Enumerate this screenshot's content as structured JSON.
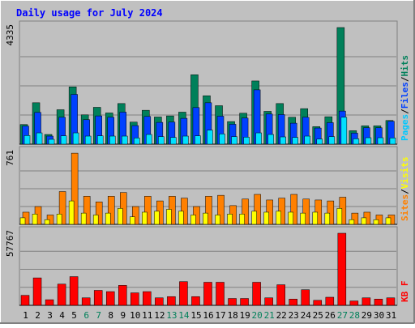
{
  "chart_data": [
    {
      "type": "bar",
      "title": "Daily usage for July 2024",
      "ymax_label": "4335",
      "ylim": [
        0,
        4335
      ],
      "categories": [
        "1",
        "2",
        "3",
        "4",
        "5",
        "6",
        "7",
        "8",
        "9",
        "10",
        "11",
        "12",
        "13",
        "14",
        "15",
        "16",
        "17",
        "18",
        "19",
        "20",
        "21",
        "22",
        "23",
        "24",
        "25",
        "26",
        "27",
        "28",
        "29",
        "30",
        "31"
      ],
      "weekend_days": [
        "6",
        "7",
        "13",
        "14",
        "20",
        "21",
        "27",
        "28"
      ],
      "legend": [
        "Pages",
        "Files",
        "Hits"
      ],
      "series": [
        {
          "name": "Hits",
          "values": [
            730,
            1540,
            360,
            1280,
            2130,
            1090,
            1370,
            1160,
            1510,
            820,
            1260,
            1010,
            1050,
            1190,
            2580,
            1800,
            1430,
            840,
            1150,
            2350,
            1220,
            1510,
            1000,
            1320,
            650,
            1020,
            4335,
            500,
            680,
            680,
            880
          ]
        },
        {
          "name": "Files",
          "values": [
            670,
            1180,
            300,
            1000,
            1850,
            910,
            1050,
            1000,
            1190,
            690,
            1030,
            810,
            820,
            960,
            1360,
            1540,
            1040,
            740,
            970,
            2020,
            1120,
            1100,
            780,
            1000,
            600,
            800,
            1230,
            410,
            610,
            610,
            850
          ]
        },
        {
          "name": "Pages",
          "values": [
            320,
            420,
            180,
            310,
            420,
            300,
            310,
            300,
            300,
            230,
            360,
            280,
            250,
            300,
            310,
            520,
            380,
            280,
            260,
            420,
            360,
            270,
            250,
            300,
            190,
            280,
            1000,
            200,
            240,
            240,
            230
          ]
        }
      ]
    },
    {
      "type": "bar",
      "ymax_label": "761",
      "ylim": [
        0,
        761
      ],
      "legend": [
        "Sites",
        "Visits"
      ],
      "series": [
        {
          "name": "Visits",
          "values": [
            130,
            190,
            100,
            350,
            760,
            300,
            240,
            300,
            340,
            190,
            300,
            250,
            300,
            280,
            190,
            300,
            310,
            200,
            270,
            320,
            260,
            280,
            320,
            270,
            260,
            250,
            290,
            120,
            130,
            100,
            100
          ]
        },
        {
          "name": "Sites",
          "values": [
            70,
            110,
            50,
            110,
            250,
            120,
            100,
            120,
            170,
            80,
            130,
            140,
            160,
            140,
            100,
            120,
            100,
            110,
            110,
            140,
            130,
            140,
            130,
            120,
            130,
            120,
            170,
            50,
            70,
            50,
            70
          ]
        }
      ]
    },
    {
      "type": "bar",
      "ymax_label": "57767",
      "ylim": [
        0,
        57767
      ],
      "legend": [
        "KB F"
      ],
      "series": [
        {
          "name": "KB F",
          "values": [
            8000,
            22000,
            4500,
            17000,
            23000,
            6000,
            12000,
            11000,
            16000,
            10000,
            11000,
            6000,
            7000,
            19000,
            7000,
            18500,
            18500,
            5500,
            5500,
            18500,
            6000,
            16500,
            5000,
            12500,
            4000,
            6500,
            57767,
            3500,
            6000,
            5000,
            6000
          ]
        }
      ]
    }
  ]
}
